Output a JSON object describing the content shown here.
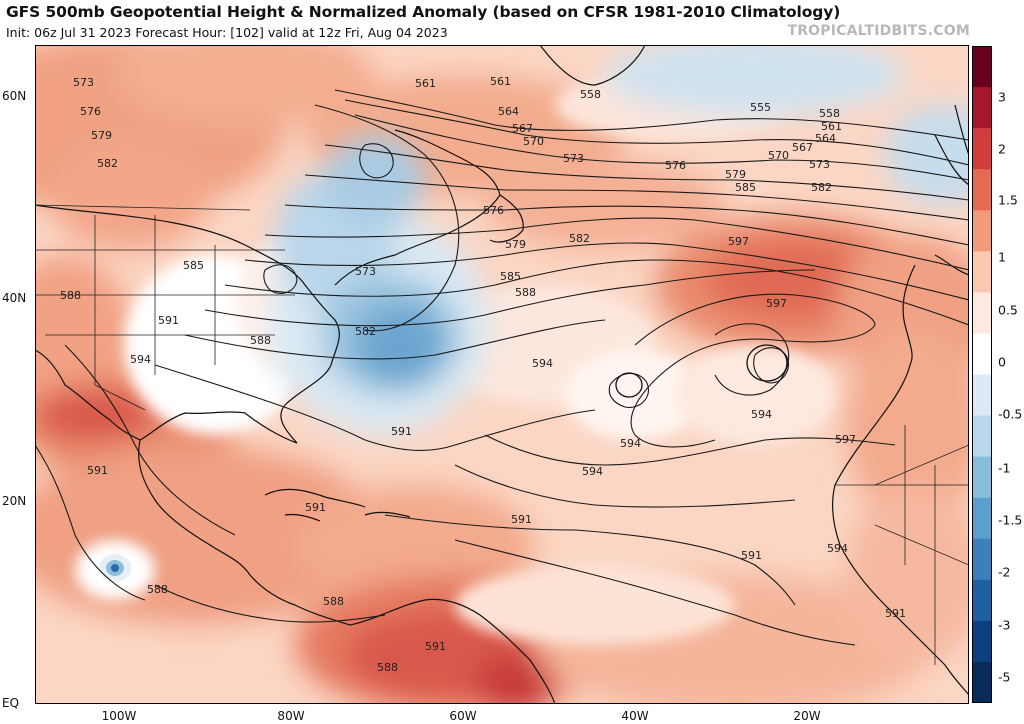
{
  "header": {
    "title": "GFS 500mb Geopotential Height & Normalized Anomaly (based on CFSR 1981-2010 Climatology)",
    "subtitle": "Init: 06z Jul 31 2023   Forecast Hour: [102]   valid at 12z Fri, Aug 04 2023",
    "credit": "TROPICALTIDBITS.COM"
  },
  "axes": {
    "lat_ticks": [
      "60N",
      "40N",
      "20N",
      "EQ"
    ],
    "lon_ticks": [
      "100W",
      "80W",
      "60W",
      "40W",
      "20W"
    ]
  },
  "colorbar": {
    "labels": [
      "3",
      "2",
      "1.5",
      "1",
      "0.5",
      "0",
      "-0.5",
      "-1",
      "-1.5",
      "-2",
      "-3",
      "-5"
    ],
    "colors": [
      "#67001f",
      "#a6172b",
      "#cf3e3c",
      "#e46a53",
      "#f39a7a",
      "#fcc9b0",
      "#fde9df",
      "#ffffff",
      "#ddeaf5",
      "#b9d6ea",
      "#89bddc",
      "#5b9fcc",
      "#3c7fba",
      "#1f5fa1",
      "#0b3f80",
      "#082b5a"
    ]
  },
  "contour_labels": {
    "l555": "555",
    "l558a": "558",
    "l558b": "558",
    "l561a": "561",
    "l561b": "561",
    "l561c": "561",
    "l564a": "564",
    "l564b": "564",
    "l567a": "567",
    "l567b": "567",
    "l570a": "570",
    "l570b": "570",
    "l573a": "573",
    "l573b": "573",
    "l573c": "573",
    "l573d": "573",
    "l576a": "576",
    "l576b": "576",
    "l576c": "576",
    "l579a": "579",
    "l579b": "579",
    "l579c": "579",
    "l582a": "582",
    "l582b": "582",
    "l582c": "582",
    "l582d": "582",
    "l585a": "585",
    "l585b": "585",
    "l585c": "585",
    "l588a": "588",
    "l588b": "588",
    "l588c": "588",
    "l588d": "588",
    "l588e": "588",
    "l588f": "588",
    "l591a": "591",
    "l591b": "591",
    "l591c": "591",
    "l591d": "591",
    "l591e": "591",
    "l591f": "591",
    "l591g": "591",
    "l591h": "591",
    "l594a": "594",
    "l594b": "594",
    "l594c": "594",
    "l594d": "594",
    "l594e": "594",
    "l594f": "594",
    "l597a": "597",
    "l597b": "597",
    "l597c": "597"
  }
}
